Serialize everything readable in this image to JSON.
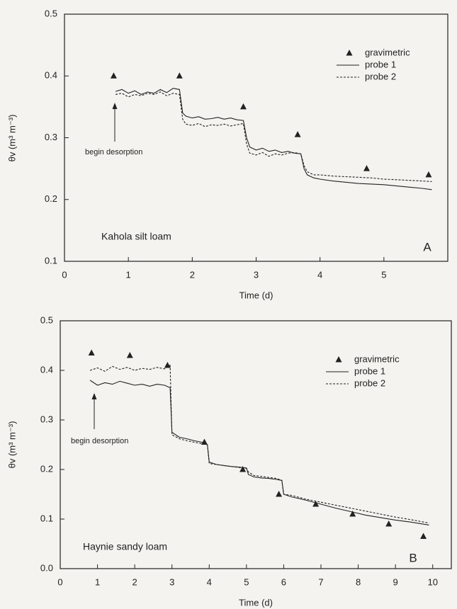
{
  "chart_data": [
    {
      "type": "line",
      "annotations": [
        "begin desorption",
        "Kahola silt loam",
        "A"
      ],
      "x_label": "Time (d)",
      "y_label": "θv (m³ m⁻³)",
      "xlim": [
        0,
        6
      ],
      "ylim": [
        0.1,
        0.5
      ],
      "xticks": [
        0,
        1,
        2,
        3,
        4,
        5
      ],
      "yticks": [
        0.1,
        0.2,
        0.3,
        0.4,
        0.5
      ],
      "legend": "upper right",
      "series": [
        {
          "name": "gravimetric",
          "color": "#222",
          "marker": "triangle",
          "x": [
            0.77,
            1.8,
            2.8,
            3.65,
            4.73,
            5.7
          ],
          "values": [
            0.4,
            0.4,
            0.35,
            0.305,
            0.25,
            0.24
          ]
        },
        {
          "name": "probe 1",
          "color": "#222",
          "line_style": "solid",
          "x": [
            0.8,
            0.9,
            1.0,
            1.1,
            1.2,
            1.3,
            1.4,
            1.5,
            1.6,
            1.7,
            1.8,
            1.85,
            1.9,
            2.0,
            2.1,
            2.2,
            2.3,
            2.4,
            2.5,
            2.6,
            2.7,
            2.8,
            2.85,
            2.9,
            3.0,
            3.1,
            3.2,
            3.3,
            3.4,
            3.5,
            3.6,
            3.7,
            3.75,
            3.8,
            3.9,
            4.0,
            4.2,
            4.4,
            4.6,
            4.8,
            5.0,
            5.2,
            5.4,
            5.6,
            5.75
          ],
          "values": [
            0.375,
            0.378,
            0.372,
            0.376,
            0.37,
            0.374,
            0.372,
            0.378,
            0.373,
            0.38,
            0.378,
            0.34,
            0.335,
            0.332,
            0.334,
            0.33,
            0.331,
            0.333,
            0.33,
            0.332,
            0.329,
            0.328,
            0.3,
            0.285,
            0.28,
            0.283,
            0.278,
            0.28,
            0.276,
            0.278,
            0.275,
            0.274,
            0.25,
            0.24,
            0.235,
            0.233,
            0.23,
            0.228,
            0.226,
            0.225,
            0.224,
            0.222,
            0.22,
            0.218,
            0.216
          ]
        },
        {
          "name": "probe 2",
          "color": "#222",
          "line_style": "dashed",
          "x": [
            0.8,
            0.9,
            1.0,
            1.1,
            1.2,
            1.3,
            1.4,
            1.5,
            1.6,
            1.7,
            1.8,
            1.85,
            1.9,
            2.0,
            2.1,
            2.2,
            2.3,
            2.4,
            2.5,
            2.6,
            2.7,
            2.8,
            2.85,
            2.9,
            3.0,
            3.1,
            3.2,
            3.3,
            3.4,
            3.5,
            3.6,
            3.7,
            3.75,
            3.8,
            3.9,
            4.0,
            4.2,
            4.4,
            4.6,
            4.8,
            5.0,
            5.2,
            5.4,
            5.6,
            5.75
          ],
          "values": [
            0.37,
            0.372,
            0.366,
            0.37,
            0.368,
            0.372,
            0.37,
            0.374,
            0.368,
            0.372,
            0.37,
            0.33,
            0.322,
            0.32,
            0.323,
            0.318,
            0.321,
            0.32,
            0.322,
            0.319,
            0.321,
            0.323,
            0.29,
            0.275,
            0.272,
            0.276,
            0.27,
            0.274,
            0.272,
            0.275,
            0.276,
            0.274,
            0.255,
            0.245,
            0.24,
            0.24,
            0.238,
            0.237,
            0.236,
            0.235,
            0.233,
            0.232,
            0.231,
            0.23,
            0.229
          ]
        }
      ]
    },
    {
      "type": "line",
      "annotations": [
        "begin desorption",
        "Haynie sandy loam",
        "B"
      ],
      "x_label": "Time (d)",
      "y_label": "θv (m³ m⁻³)",
      "xlim": [
        0,
        10.5
      ],
      "ylim": [
        0,
        0.5
      ],
      "xticks": [
        0,
        1,
        2,
        3,
        4,
        5,
        6,
        7,
        8,
        9,
        10
      ],
      "yticks": [
        {
          "value": 0,
          "label": "0.0"
        },
        0.1,
        0.2,
        0.3,
        0.4,
        0.5
      ],
      "legend": "upper right",
      "series": [
        {
          "name": "gravimetric",
          "color": "#222",
          "marker": "triangle",
          "x": [
            0.84,
            1.87,
            2.88,
            3.87,
            4.9,
            5.87,
            6.86,
            7.85,
            8.82,
            9.75
          ],
          "values": [
            0.435,
            0.43,
            0.41,
            0.255,
            0.2,
            0.15,
            0.13,
            0.11,
            0.09,
            0.065
          ]
        },
        {
          "name": "probe 1",
          "color": "#222",
          "line_style": "solid",
          "x": [
            0.8,
            1.0,
            1.2,
            1.4,
            1.6,
            1.8,
            2.0,
            2.2,
            2.4,
            2.6,
            2.8,
            2.95,
            3.0,
            3.2,
            3.4,
            3.6,
            3.8,
            3.95,
            4.0,
            4.2,
            4.4,
            4.6,
            4.8,
            5.0,
            5.05,
            5.2,
            5.4,
            5.6,
            5.8,
            5.95,
            6.0,
            6.2,
            6.6,
            7.0,
            7.4,
            7.8,
            8.2,
            8.6,
            9.0,
            9.4,
            9.9
          ],
          "values": [
            0.38,
            0.37,
            0.375,
            0.372,
            0.378,
            0.374,
            0.37,
            0.372,
            0.368,
            0.372,
            0.37,
            0.365,
            0.275,
            0.265,
            0.262,
            0.258,
            0.255,
            0.25,
            0.215,
            0.21,
            0.208,
            0.206,
            0.205,
            0.203,
            0.19,
            0.185,
            0.183,
            0.182,
            0.18,
            0.178,
            0.15,
            0.145,
            0.138,
            0.13,
            0.122,
            0.115,
            0.108,
            0.103,
            0.098,
            0.094,
            0.088
          ]
        },
        {
          "name": "probe 2",
          "color": "#222",
          "line_style": "dashed",
          "x": [
            0.8,
            1.0,
            1.2,
            1.4,
            1.6,
            1.8,
            2.0,
            2.2,
            2.4,
            2.6,
            2.8,
            2.95,
            3.0,
            3.2,
            3.4,
            3.6,
            3.8,
            3.95,
            4.0,
            4.2,
            4.4,
            4.6,
            4.8,
            5.0,
            5.05,
            5.2,
            5.4,
            5.6,
            5.8,
            5.95,
            6.0,
            6.2,
            6.6,
            7.0,
            7.4,
            7.8,
            8.2,
            8.6,
            9.0,
            9.4,
            9.9
          ],
          "values": [
            0.4,
            0.405,
            0.398,
            0.408,
            0.402,
            0.406,
            0.4,
            0.404,
            0.402,
            0.406,
            0.403,
            0.41,
            0.27,
            0.262,
            0.258,
            0.255,
            0.252,
            0.25,
            0.212,
            0.21,
            0.208,
            0.206,
            0.204,
            0.202,
            0.195,
            0.188,
            0.186,
            0.184,
            0.182,
            0.178,
            0.15,
            0.148,
            0.14,
            0.134,
            0.128,
            0.122,
            0.116,
            0.11,
            0.104,
            0.099,
            0.092
          ]
        }
      ]
    }
  ]
}
